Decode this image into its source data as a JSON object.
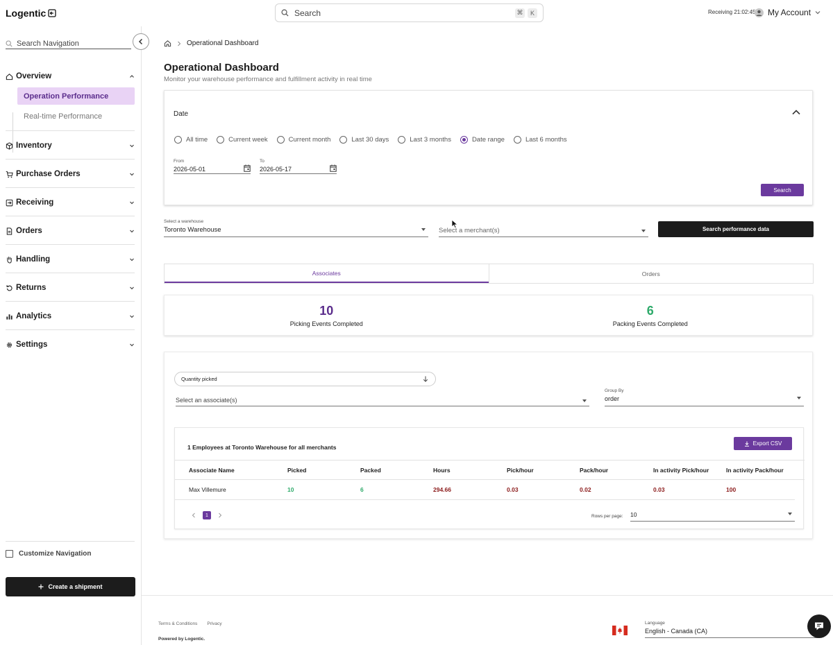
{
  "app": {
    "name": "Logentic"
  },
  "header": {
    "search_placeholder": "Search",
    "shortcut_keys": [
      "⌘",
      "K"
    ],
    "status_text": "Receiving 21:02:45",
    "account_label": "My Account"
  },
  "sidebar": {
    "search_placeholder": "Search Navigation",
    "sections": [
      {
        "label": "Overview",
        "icon": "home-icon",
        "expanded": true
      },
      {
        "label": "Inventory",
        "icon": "box-icon"
      },
      {
        "label": "Purchase Orders",
        "icon": "cart-icon"
      },
      {
        "label": "Receiving",
        "icon": "receiving-icon"
      },
      {
        "label": "Orders",
        "icon": "document-icon"
      },
      {
        "label": "Handling",
        "icon": "hand-icon"
      },
      {
        "label": "Returns",
        "icon": "return-icon"
      },
      {
        "label": "Analytics",
        "icon": "bar-chart-icon"
      },
      {
        "label": "Settings",
        "icon": "gear-icon"
      }
    ],
    "overview_items": [
      "Operation Performance",
      "Real-time Performance"
    ],
    "customize_label": "Customize Navigation",
    "create_button": "Create a shipment"
  },
  "breadcrumb": {
    "current": "Operational Dashboard"
  },
  "page": {
    "title": "Operational Dashboard",
    "subtitle": "Monitor your warehouse performance and fulfillment activity in real time"
  },
  "date_filter": {
    "label": "Date",
    "options": [
      "All time",
      "Current week",
      "Current month",
      "Last 30 days",
      "Last 3 months",
      "Date range",
      "Last 6 months"
    ],
    "selected": "Date range",
    "from_label": "From",
    "from_value": "2026-05-01",
    "to_label": "To",
    "to_value": "2026-05-17",
    "search_button": "Search"
  },
  "filters": {
    "warehouse_label": "Select a warehouse",
    "warehouse_value": "Toronto Warehouse",
    "merchant_placeholder": "Select a merchant(s)",
    "search_button": "Search performance data"
  },
  "tabs": [
    "Associates",
    "Orders"
  ],
  "active_tab": "Associates",
  "stats": [
    {
      "value": "10",
      "label": "Picking Events Completed",
      "color": "#5b2d8c"
    },
    {
      "value": "6",
      "label": "Packing Events Completed",
      "color": "#2eaa6a"
    }
  ],
  "table_controls": {
    "sort_value": "Quantity picked",
    "associate_placeholder": "Select an associate(s)",
    "group_by_label": "Group By",
    "group_by_value": "order"
  },
  "table": {
    "title": "1 Employees at Toronto Warehouse for all merchants",
    "export_button": "Export CSV",
    "columns": [
      "Associate Name",
      "Picked",
      "Packed",
      "Hours",
      "Pick/hour",
      "Pack/hour",
      "In activity Pick/hour",
      "In activity Pack/hour"
    ],
    "rows": [
      [
        "Max Villemure",
        "10",
        "6",
        "294.66",
        "0.03",
        "0.02",
        "0.03",
        "100"
      ]
    ],
    "page": "1",
    "rows_per_page_label": "Rows per page:",
    "rows_per_page": "10"
  },
  "footer": {
    "links": [
      "Terms & Conditions",
      "Privacy"
    ],
    "powered_by": "Powered by Logentic.",
    "language_label": "Language",
    "language_value": "English - Canada (CA)"
  },
  "colors": {
    "accent": "#6b3a9e",
    "green": "#2eaa6a",
    "dark_red": "#8b1a1a"
  }
}
